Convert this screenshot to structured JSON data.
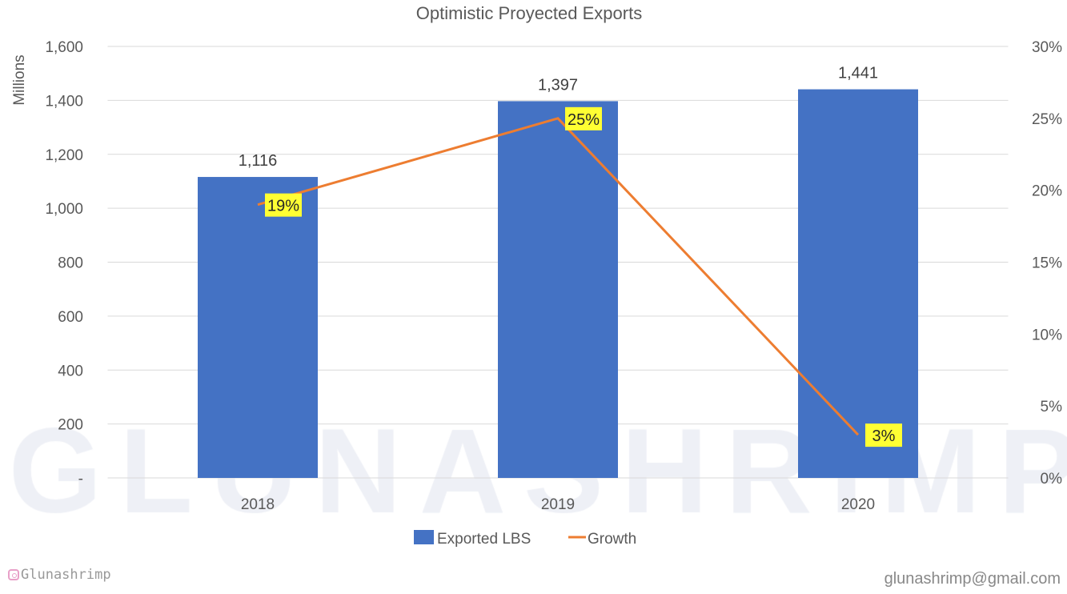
{
  "chart_data": {
    "type": "bar",
    "title": "Optimistic Proyected Exports",
    "categories": [
      "2018",
      "2019",
      "2020"
    ],
    "series": [
      {
        "name": "Exported LBS",
        "type": "bar",
        "axis": "left",
        "values": [
          1116,
          1397,
          1441
        ],
        "labels": [
          "1,116",
          "1,397",
          "1,441"
        ],
        "color": "#4472C4"
      },
      {
        "name": "Growth",
        "type": "line",
        "axis": "right",
        "values": [
          19,
          25,
          3
        ],
        "labels": [
          "19%",
          "25%",
          "3%"
        ],
        "color": "#ED7D31"
      }
    ],
    "ylabel": "Millions",
    "ylim": [
      0,
      1600
    ],
    "yticks": [
      0,
      200,
      400,
      600,
      800,
      1000,
      1200,
      1400,
      1600
    ],
    "ytick_labels": [
      "-",
      "200",
      "400",
      "600",
      "800",
      "1,000",
      "1,200",
      "1,400",
      "1,600"
    ],
    "y2lim": [
      0,
      30
    ],
    "y2ticks": [
      0,
      5,
      10,
      15,
      20,
      25,
      30
    ],
    "y2tick_labels": [
      "0%",
      "5%",
      "10%",
      "15%",
      "20%",
      "25%",
      "30%"
    ],
    "grid": true,
    "legend": "bottom",
    "label_highlight_color": "#FFFF33"
  },
  "watermark": "GLUNASHRIMP",
  "footer": {
    "instagram": "Glunashrimp",
    "email": "glunashrimp@gmail.com"
  }
}
